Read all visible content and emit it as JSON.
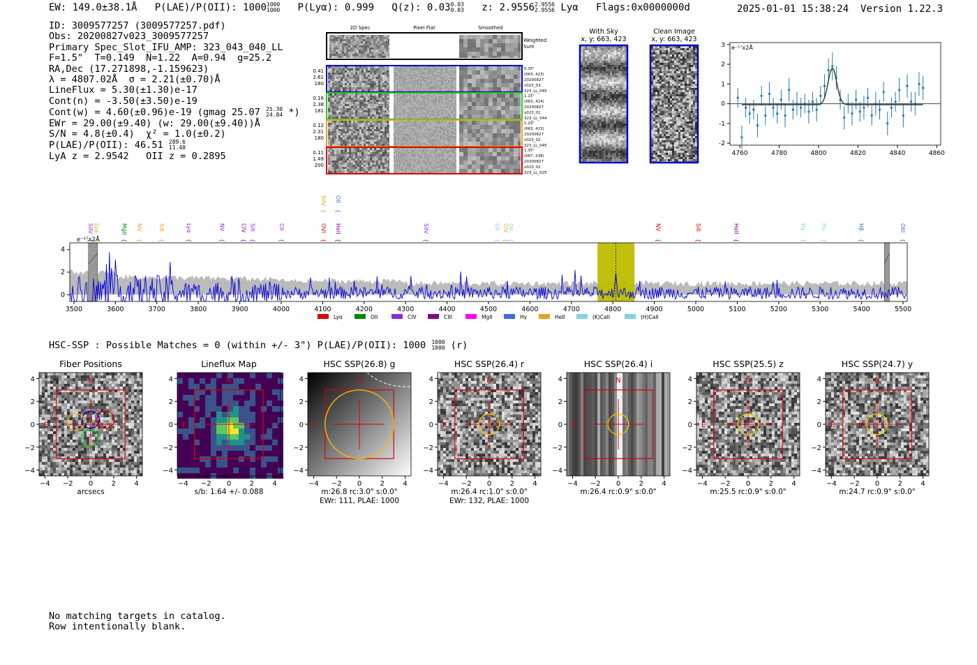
{
  "header": {
    "ew": "EW: 149.0±38.1Å",
    "plae": "P(LAE)/P(OII): 1000",
    "plae_hi": "1000",
    "plae_lo": "1000",
    "plya": "P(Lyα): 0.999",
    "qz": "Q(z): 0.03",
    "qz_hi": "0.03",
    "qz_lo": "0.03",
    "z": "z: 2.9556",
    "z_hi": "2.9556",
    "z_lo": "2.9556",
    "line": "Lyα",
    "flags": "Flags:0x0000000d",
    "datetime": "2025-01-01 15:38:24",
    "version": "Version 1.22.3"
  },
  "info": {
    "id": "ID: 3009577257 (3009577257.pdf)",
    "obs": "Obs: 20200827v023_3009577257",
    "primary": "Primary Spec_Slot_IFU_AMP: 323_043_040_LL",
    "fparams": "F=1.5\"  T=0.149  N=1.22  A=0.94  g=25.2",
    "radec": "RA,Dec (17.271898,-1.159623)",
    "lambda": "λ = 4807.02Å  σ = 2.21(±0.70)Å",
    "lineflux": "LineFlux = 5.30(±1.30)e-17",
    "contn": "Cont(n) = -3.50(±3.50)e-19",
    "contw": "Cont(w) = 4.60(±0.96)e-19 (gmag 25.07",
    "contw_hi": "25.30",
    "contw_lo": "24.84",
    "contw_end": "*)",
    "ewr": "EWr = 29.00(±9.40) (w: 29.00(±9.40))Å",
    "sn": "S/N = 4.8(±0.4)  χ² = 1.0(±0.2)",
    "plae2": "P(LAE)/P(OII): 46.51",
    "plae2_hi": "289.6",
    "plae2_lo": "11.48",
    "lyaz": "LyA z = 2.9542   OII z = 0.2895"
  },
  "cutouts": {
    "col_titles": [
      "2D Spec",
      "Pixel Flat",
      "Smoothed"
    ],
    "weighted_label": "Weighted Sum",
    "rows": [
      {
        "left": [
          "0.41",
          "2.61",
          "180"
        ],
        "right": [
          "0.35\"",
          "(663, 423)",
          "20200827",
          "v023_03",
          "323_LL_045"
        ],
        "color": "#0000cc"
      },
      {
        "left": [
          "0.16",
          "2.38",
          "181"
        ],
        "right": [
          "1.15\"",
          "(663, 414)",
          "20200827",
          "v023_01",
          "323_LL_044"
        ],
        "color": "#22cc22"
      },
      {
        "left": [
          "0.12",
          "2.31",
          "180"
        ],
        "right": [
          "1.29\"",
          "(663, 423)",
          "20200827",
          "v023_02",
          "323_LL_045"
        ],
        "color": "#e8a020"
      },
      {
        "left": [
          "0.11",
          "1.49",
          "200"
        ],
        "right": [
          "1.35\"",
          "(667, 238)",
          "20200827",
          "v023_02",
          "323_LL_025"
        ],
        "color": "#dd0000"
      }
    ]
  },
  "with_sky": {
    "title": "With Sky",
    "coords": "x, y: 663, 423"
  },
  "clean_image": {
    "title": "Clean Image",
    "coords": "x, y: 663, 423"
  },
  "hsc": {
    "text": "HSC-SSP : Possible Matches = 0 (within +/- 3\")  P(LAE)/P(OII): 1000",
    "hi": "1000",
    "lo": "1000",
    "end": "(r)"
  },
  "panels": [
    {
      "title": "Fiber Positions",
      "cap1": "arcsecs",
      "cap2": ""
    },
    {
      "title": "Lineflux Map",
      "cap1": "s/b: 1.64 +/- 0.088",
      "cap2": ""
    },
    {
      "title": "HSC SSP(26.8) g",
      "cap1": "m:26.8 rc:3.0\"  s:0.0\"",
      "cap2": "EWr: 111, PLAE: 1000"
    },
    {
      "title": "HSC SSP(26.4) r",
      "cap1": "m:26.4 rc:1.0\"  s:0.0\"",
      "cap2": "EWr: 132, PLAE: 1000"
    },
    {
      "title": "HSC SSP(26.4) i",
      "cap1": "m:26.4 rc:0.9\"  s:0.0\"",
      "cap2": ""
    },
    {
      "title": "HSC SSP(25.5) z",
      "cap1": "m:25.5 rc:0.9\"  s:0.0\"",
      "cap2": ""
    },
    {
      "title": "HSC SSP(24.7) y",
      "cap1": "m:24.7 rc:0.9\"  s:0.0\"",
      "cap2": ""
    }
  ],
  "footer": {
    "line1": "No matching targets in catalog.",
    "line2": "Row intentionally blank."
  },
  "chart_data": [
    {
      "type": "scatter",
      "title": "",
      "unit_label": "e⁻¹⁷x2Å",
      "xlim": [
        4755,
        4862
      ],
      "ylim": [
        -2.1,
        3.1
      ],
      "xticks": [
        4760,
        4780,
        4800,
        4820,
        4840,
        4860
      ],
      "yticks": [
        -2,
        -1,
        0,
        1,
        2,
        3
      ],
      "colors": {
        "points": "#1f77b4",
        "fit": "#333333"
      },
      "points": [
        [
          4759,
          0.3,
          0.5
        ],
        [
          4761,
          -1.7,
          0.6
        ],
        [
          4763,
          -0.2,
          0.5
        ],
        [
          4765,
          -0.5,
          0.5
        ],
        [
          4767,
          -0.3,
          0.5
        ],
        [
          4769,
          -1.1,
          0.6
        ],
        [
          4771,
          0.4,
          0.5
        ],
        [
          4773,
          -0.6,
          0.5
        ],
        [
          4775,
          0.5,
          0.6
        ],
        [
          4777,
          -0.2,
          0.5
        ],
        [
          4779,
          -0.5,
          0.5
        ],
        [
          4781,
          0.2,
          0.5
        ],
        [
          4783,
          -0.6,
          0.6
        ],
        [
          4785,
          0.7,
          0.6
        ],
        [
          4787,
          -0.3,
          0.5
        ],
        [
          4789,
          0.0,
          0.6
        ],
        [
          4791,
          -0.2,
          0.5
        ],
        [
          4793,
          0.0,
          0.5
        ],
        [
          4795,
          -0.4,
          0.6
        ],
        [
          4797,
          0.1,
          0.5
        ],
        [
          4799,
          -0.3,
          0.6
        ],
        [
          4801,
          0.4,
          0.5
        ],
        [
          4803,
          0.9,
          0.6
        ],
        [
          4805,
          1.7,
          0.6
        ],
        [
          4807,
          1.9,
          0.7
        ],
        [
          4809,
          1.3,
          0.6
        ],
        [
          4811,
          0.2,
          0.5
        ],
        [
          4813,
          -0.7,
          0.6
        ],
        [
          4815,
          0.0,
          0.5
        ],
        [
          4817,
          -0.5,
          0.6
        ],
        [
          4819,
          0.2,
          0.5
        ],
        [
          4821,
          -0.4,
          0.5
        ],
        [
          4823,
          -0.2,
          0.6
        ],
        [
          4825,
          0.3,
          0.5
        ],
        [
          4827,
          -0.6,
          0.5
        ],
        [
          4829,
          0.0,
          0.6
        ],
        [
          4831,
          -0.3,
          0.5
        ],
        [
          4833,
          0.6,
          0.5
        ],
        [
          4835,
          -1.0,
          0.6
        ],
        [
          4837,
          -0.2,
          0.5
        ],
        [
          4839,
          0.1,
          0.5
        ],
        [
          4841,
          0.7,
          0.6
        ],
        [
          4843,
          -0.6,
          0.6
        ],
        [
          4845,
          0.9,
          0.6
        ],
        [
          4847,
          0.1,
          0.5
        ],
        [
          4849,
          0.0,
          0.6
        ],
        [
          4851,
          1.0,
          0.6
        ],
        [
          4853,
          0.8,
          0.6
        ]
      ],
      "fit": {
        "center": 4807.02,
        "sigma": 2.21,
        "amplitude": 1.85,
        "baseline": -0.05
      }
    },
    {
      "type": "line",
      "title": "",
      "unit_label": "e⁻¹⁷x2Å",
      "xlim": [
        3490,
        5510
      ],
      "ylim": [
        -0.6,
        4.6
      ],
      "xticks": [
        3500,
        3600,
        3700,
        3800,
        3900,
        4000,
        4100,
        4200,
        4300,
        4400,
        4500,
        4600,
        4700,
        4800,
        4900,
        5000,
        5100,
        5200,
        5300,
        5400,
        5500
      ],
      "yticks": [
        0,
        2,
        4
      ],
      "highlight_region": [
        4763,
        4852
      ],
      "detection_wavelength": 4807,
      "masked_regions": [
        [
          3535,
          3557
        ],
        [
          5455,
          5467
        ]
      ],
      "colors": {
        "flux": "#0000dd",
        "noise": "#bbbbbb",
        "highlight": "#bdbd00"
      },
      "line_markers": [
        {
          "name": "SiIV",
          "wave": 3530,
          "color": "#8a2be2"
        },
        {
          "name": "Lyα",
          "wave": 3545,
          "color": "#e8a020"
        },
        {
          "name": "MgII",
          "wave": 3612,
          "color": "#008800"
        },
        {
          "name": "NV",
          "wave": 3648,
          "color": "#e8a020"
        },
        {
          "name": "SiII",
          "wave": 3702,
          "color": "#e8a020"
        },
        {
          "name": "Lyα",
          "wave": 3768,
          "color": "#8a2be2"
        },
        {
          "name": "NV",
          "wave": 3848,
          "color": "#8a2be2"
        },
        {
          "name": "CIV",
          "wave": 3900,
          "color": "#880088"
        },
        {
          "name": "SiII",
          "wave": 3922,
          "color": "#8a2be2"
        },
        {
          "name": "CII",
          "wave": 3992,
          "color": "#8a2be2"
        },
        {
          "name": "OVI",
          "wave": 4093,
          "color": "#dd0000"
        },
        {
          "name": "HeII",
          "wave": 4128,
          "color": "#880088"
        },
        {
          "name": "SiIV",
          "wave": 4340,
          "color": "#8a2be2"
        },
        {
          "name": "OII",
          "wave": 4512,
          "color": "#87ceeb"
        },
        {
          "name": "CIV",
          "wave": 4532,
          "color": "#e8a020"
        },
        {
          "name": "OII",
          "wave": 4545,
          "color": "#87ceeb"
        },
        {
          "name": "NV",
          "wave": 4900,
          "color": "#dd0000"
        },
        {
          "name": "SiII",
          "wave": 4997,
          "color": "#dd0000"
        },
        {
          "name": "HeII",
          "wave": 5088,
          "color": "#880088"
        },
        {
          "name": "Hγ",
          "wave": 5250,
          "color": "#87ceeb"
        },
        {
          "name": "Hγ",
          "wave": 5300,
          "color": "#87ceeb"
        },
        {
          "name": "Hβ",
          "wave": 5390,
          "color": "#4169e1"
        },
        {
          "name": "OIII",
          "wave": 5490,
          "color": "#4169e1"
        }
      ],
      "top_markers": [
        {
          "name": "SiIV",
          "wave": 4093,
          "color": "#e8a020"
        },
        {
          "name": "OII",
          "wave": 4128,
          "color": "#4169e1"
        }
      ],
      "legend": [
        {
          "name": "Lyα",
          "color": "#dd0000"
        },
        {
          "name": "OII",
          "color": "#008800"
        },
        {
          "name": "CIV",
          "color": "#8a2be2"
        },
        {
          "name": "CIII",
          "color": "#880088"
        },
        {
          "name": "MgII",
          "color": "#ff00ff"
        },
        {
          "name": "Hγ",
          "color": "#4169e1"
        },
        {
          "name": "HeII",
          "color": "#e8a020"
        },
        {
          "name": "(K)CaII",
          "color": "#87ceeb"
        },
        {
          "name": "(H)CaII",
          "color": "#87ceeb"
        }
      ],
      "legend_placement": "bottom-center"
    }
  ]
}
